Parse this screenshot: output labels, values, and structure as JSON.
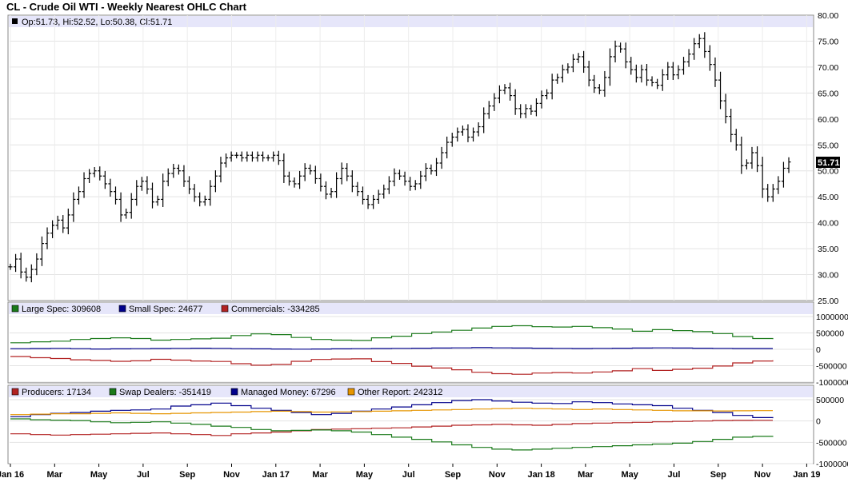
{
  "header": {
    "title": "CL - Crude Oil WTI - Weekly Nearest OHLC Chart"
  },
  "price_panel": {
    "info": "Op:51.73, Hi:52.52, Lo:50.38, Cl:51.71",
    "last_price_label": "51.71",
    "swatch_color": "#000000"
  },
  "cot_panel_1": {
    "legend": [
      {
        "label": "Large Spec: 309608",
        "color": "#1a7a1a"
      },
      {
        "label": "Small Spec: 24677",
        "color": "#00008b"
      },
      {
        "label": "Commercials: -334285",
        "color": "#b22222"
      }
    ]
  },
  "cot_panel_2": {
    "legend": [
      {
        "label": "Producers: 17134",
        "color": "#b22222"
      },
      {
        "label": "Swap Dealers: -351419",
        "color": "#1a7a1a"
      },
      {
        "label": "Managed Money: 67296",
        "color": "#00008b"
      },
      {
        "label": "Other Report: 242312",
        "color": "#e69500"
      }
    ]
  },
  "chart_data": [
    {
      "type": "ohlc",
      "title": "CL - Crude Oil WTI - Weekly Nearest OHLC Chart",
      "ylim": [
        25,
        80
      ],
      "y_ticks": [
        "25.00",
        "30.00",
        "35.00",
        "40.00",
        "45.00",
        "50.00",
        "55.00",
        "60.00",
        "65.00",
        "70.00",
        "75.00",
        "80.00"
      ],
      "x_tick_labels": [
        "Jan 16",
        "Mar",
        "May",
        "Jul",
        "Sep",
        "Nov",
        "Jan 17",
        "Mar",
        "May",
        "Jul",
        "Sep",
        "Nov",
        "Jan 18",
        "Mar",
        "May",
        "Jul",
        "Sep",
        "Nov",
        "Jan 19"
      ],
      "approx_weekly_closes": [
        31.5,
        33.0,
        30.5,
        29.5,
        31.0,
        33.0,
        36.0,
        38.0,
        39.5,
        40.5,
        39.0,
        41.5,
        44.5,
        46.0,
        48.5,
        49.5,
        50.0,
        49.0,
        47.5,
        46.0,
        44.5,
        41.5,
        42.0,
        44.5,
        47.0,
        48.0,
        46.5,
        44.0,
        44.5,
        48.0,
        49.5,
        50.5,
        50.0,
        48.0,
        46.5,
        45.0,
        44.0,
        44.5,
        47.0,
        49.0,
        51.5,
        52.5,
        53.0,
        53.0,
        52.5,
        53.0,
        52.5,
        53.0,
        52.5,
        52.5,
        53.0,
        52.0,
        49.0,
        48.0,
        47.5,
        49.0,
        50.5,
        50.0,
        48.5,
        47.0,
        45.5,
        46.0,
        48.5,
        50.5,
        49.0,
        47.0,
        46.0,
        44.5,
        43.5,
        44.5,
        45.5,
        46.5,
        48.0,
        49.5,
        49.0,
        48.0,
        47.0,
        47.5,
        49.0,
        50.5,
        50.0,
        51.5,
        53.5,
        55.5,
        56.5,
        57.5,
        58.0,
        56.5,
        57.5,
        58.5,
        61.0,
        62.5,
        64.0,
        65.5,
        66.0,
        64.5,
        62.0,
        61.0,
        62.0,
        61.5,
        63.0,
        64.5,
        65.0,
        67.5,
        68.0,
        69.5,
        70.0,
        71.5,
        72.0,
        70.0,
        67.5,
        66.0,
        65.5,
        68.0,
        72.0,
        74.0,
        73.5,
        71.0,
        69.5,
        68.0,
        69.5,
        67.5,
        67.0,
        66.5,
        68.5,
        70.0,
        68.5,
        69.5,
        71.0,
        72.5,
        74.5,
        75.5,
        73.0,
        70.5,
        67.5,
        63.5,
        60.5,
        57.0,
        55.0,
        51.0,
        51.5,
        53.5,
        51.0,
        46.5,
        45.0,
        46.5,
        48.0,
        50.5,
        51.71
      ]
    },
    {
      "type": "line",
      "panel": "cot_1",
      "ylim": [
        -1000000,
        1000000
      ],
      "y_ticks": [
        "-1000000",
        "-500000",
        "0",
        "500000",
        "1000000"
      ],
      "series": [
        {
          "name": "Large Spec",
          "color": "#1a7a1a",
          "values": [
            200000,
            230000,
            250000,
            300000,
            330000,
            350000,
            330000,
            280000,
            300000,
            320000,
            340000,
            420000,
            470000,
            450000,
            360000,
            300000,
            280000,
            270000,
            350000,
            400000,
            480000,
            530000,
            580000,
            650000,
            700000,
            720000,
            690000,
            680000,
            700000,
            660000,
            620000,
            550000,
            600000,
            570000,
            540000,
            480000,
            390000,
            330000,
            309608
          ]
        },
        {
          "name": "Small Spec",
          "color": "#00008b",
          "values": [
            20000,
            25000,
            30000,
            20000,
            10000,
            15000,
            20000,
            25000,
            30000,
            35000,
            30000,
            20000,
            15000,
            10000,
            5000,
            10000,
            15000,
            20000,
            25000,
            30000,
            35000,
            40000,
            45000,
            50000,
            45000,
            40000,
            35000,
            30000,
            25000,
            30000,
            35000,
            40000,
            45000,
            40000,
            35000,
            30000,
            25000,
            24677,
            24677
          ]
        },
        {
          "name": "Commercials",
          "color": "#b22222",
          "values": [
            -220000,
            -255000,
            -280000,
            -320000,
            -340000,
            -365000,
            -350000,
            -305000,
            -330000,
            -355000,
            -370000,
            -440000,
            -485000,
            -460000,
            -365000,
            -310000,
            -295000,
            -290000,
            -375000,
            -430000,
            -515000,
            -570000,
            -625000,
            -700000,
            -745000,
            -760000,
            -725000,
            -710000,
            -725000,
            -690000,
            -655000,
            -590000,
            -645000,
            -610000,
            -575000,
            -510000,
            -415000,
            -355000,
            -334285
          ]
        }
      ]
    },
    {
      "type": "line",
      "panel": "cot_2",
      "ylim": [
        -1000000,
        500000
      ],
      "y_ticks": [
        "-1000000",
        "-500000",
        "0",
        "500000"
      ],
      "series": [
        {
          "name": "Producers",
          "color": "#b22222",
          "values": [
            -300000,
            -320000,
            -330000,
            -320000,
            -310000,
            -300000,
            -290000,
            -280000,
            -300000,
            -320000,
            -340000,
            -300000,
            -280000,
            -260000,
            -230000,
            -200000,
            -190000,
            -180000,
            -170000,
            -160000,
            -140000,
            -120000,
            -100000,
            -90000,
            -80000,
            -90000,
            -100000,
            -80000,
            -60000,
            -50000,
            -40000,
            -30000,
            -20000,
            -10000,
            0,
            10000,
            15000,
            17134,
            17134
          ]
        },
        {
          "name": "Swap Dealers",
          "color": "#1a7a1a",
          "values": [
            50000,
            30000,
            20000,
            10000,
            -20000,
            -40000,
            -30000,
            -20000,
            -50000,
            -80000,
            -120000,
            -150000,
            -200000,
            -230000,
            -220000,
            -210000,
            -230000,
            -260000,
            -320000,
            -380000,
            -430000,
            -490000,
            -560000,
            -620000,
            -660000,
            -680000,
            -660000,
            -640000,
            -620000,
            -600000,
            -580000,
            -560000,
            -540000,
            -520000,
            -480000,
            -430000,
            -380000,
            -360000,
            -351419
          ]
        },
        {
          "name": "Managed Money",
          "color": "#00008b",
          "values": [
            100000,
            150000,
            180000,
            200000,
            230000,
            250000,
            260000,
            280000,
            350000,
            380000,
            420000,
            360000,
            300000,
            250000,
            200000,
            150000,
            180000,
            230000,
            280000,
            330000,
            380000,
            430000,
            480000,
            500000,
            470000,
            440000,
            420000,
            410000,
            450000,
            430000,
            400000,
            380000,
            360000,
            300000,
            250000,
            200000,
            130000,
            80000,
            67296
          ]
        },
        {
          "name": "Other Report",
          "color": "#e69500",
          "values": [
            150000,
            160000,
            170000,
            170000,
            180000,
            190000,
            180000,
            170000,
            180000,
            190000,
            200000,
            210000,
            220000,
            230000,
            220000,
            210000,
            215000,
            220000,
            230000,
            240000,
            250000,
            260000,
            270000,
            280000,
            290000,
            300000,
            290000,
            280000,
            270000,
            280000,
            270000,
            260000,
            250000,
            240000,
            240000,
            235000,
            240000,
            242312,
            242312
          ]
        }
      ]
    }
  ]
}
